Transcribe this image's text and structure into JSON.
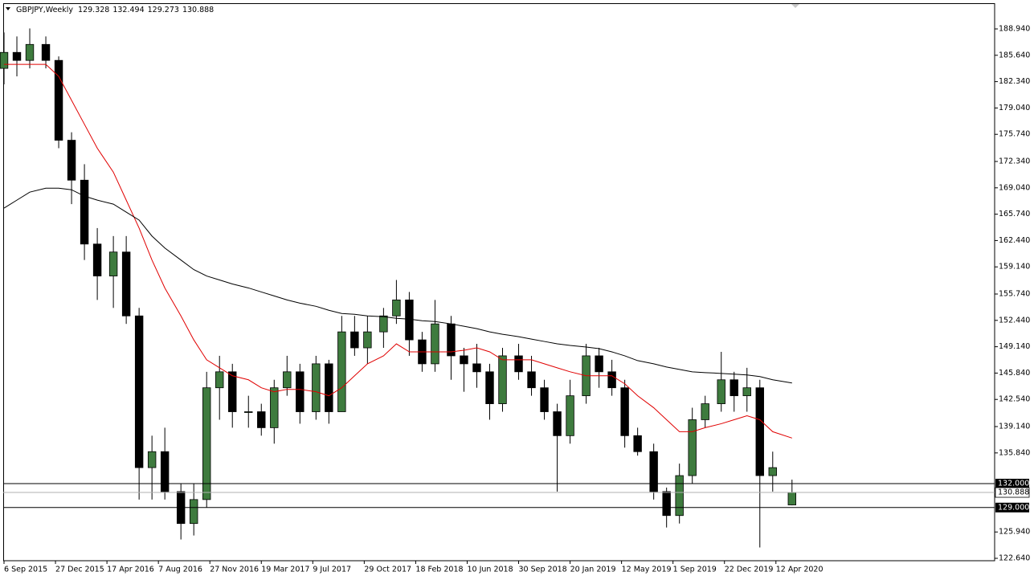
{
  "chart_data": {
    "type": "candlestick",
    "title": "GBPJPY,Weekly",
    "x": [
      0,
      4,
      8,
      13,
      17,
      21,
      25,
      29,
      34,
      38,
      42,
      46,
      50,
      55,
      59,
      63,
      67,
      71,
      76,
      80,
      84,
      88,
      92,
      97,
      101,
      105,
      109,
      113,
      118,
      122,
      126,
      130,
      134,
      139,
      143,
      147,
      151,
      155,
      160,
      164,
      168,
      172,
      176,
      181,
      185,
      189,
      193,
      197,
      202,
      206,
      210,
      214,
      218,
      223,
      227,
      231,
      235,
      239,
      245
    ],
    "open": [
      184,
      186,
      185,
      187,
      185,
      175,
      170,
      162,
      158,
      161,
      153,
      134,
      136,
      131,
      127,
      130,
      144,
      146,
      141,
      141,
      139,
      144,
      146,
      141,
      147,
      141,
      151,
      149,
      151,
      153,
      155,
      150,
      147,
      152,
      148,
      147,
      146,
      142,
      148,
      146,
      144,
      141,
      138,
      143,
      148,
      146,
      144,
      138,
      136,
      131,
      128,
      133,
      140,
      142,
      145,
      143,
      144,
      133,
      129.328
    ],
    "high": [
      188.5,
      188,
      189,
      188,
      185.5,
      176,
      172,
      164,
      163,
      163,
      154,
      138,
      139,
      132,
      132,
      146,
      148,
      147,
      143,
      142,
      145,
      148,
      147,
      148,
      147.5,
      153,
      153,
      153,
      154,
      157.5,
      156,
      151,
      155,
      153,
      149,
      149.5,
      147,
      149,
      149.5,
      148,
      145,
      142,
      145,
      149.5,
      149,
      147.5,
      145,
      139,
      137,
      131.5,
      134.5,
      141.5,
      143,
      148.5,
      146,
      146.5,
      145,
      136,
      132.494
    ],
    "low": [
      182,
      183,
      184,
      184,
      174,
      167,
      160,
      155,
      154,
      152,
      130,
      130,
      130,
      125,
      125.5,
      129,
      140,
      139,
      139,
      138,
      137,
      143,
      139.5,
      140,
      139.5,
      141,
      148,
      147,
      149,
      152,
      148,
      146,
      146,
      145,
      143.5,
      144,
      140,
      141,
      145,
      143,
      140,
      131,
      137,
      142,
      144,
      143,
      136.5,
      135.5,
      130,
      126.5,
      127,
      132,
      139,
      141,
      141,
      141,
      124,
      131,
      129.273
    ],
    "close": [
      186,
      185,
      187,
      185,
      175,
      170,
      162,
      158,
      161,
      153,
      134,
      136,
      131,
      127,
      130,
      144,
      146,
      141,
      141,
      139,
      144,
      146,
      141,
      147,
      141,
      151,
      149,
      151,
      153,
      155,
      150,
      147,
      152,
      148,
      147,
      146,
      142,
      148,
      146,
      144,
      141,
      138,
      143,
      148,
      146,
      144,
      138,
      136,
      131,
      128,
      133,
      140,
      142,
      145,
      143,
      144,
      133,
      134,
      130.888
    ],
    "up_color": "#3e7b3e",
    "down_color": "#000000",
    "series": [
      {
        "color": "#e00000",
        "values": [
          184.5,
          184.5,
          184.5,
          184.5,
          183,
          180,
          177,
          174,
          171,
          167.5,
          164,
          160,
          156.5,
          153,
          150,
          147.5,
          146.5,
          145.5,
          145,
          144,
          143.5,
          143.8,
          143.8,
          143.5,
          143,
          144,
          145.5,
          147,
          148,
          149.5,
          148.5,
          148.5,
          148.5,
          148.5,
          148.7,
          149,
          148.5,
          147.5,
          147.5,
          147.5,
          147,
          146.5,
          146,
          145.5,
          145.5,
          145.5,
          144.5,
          143,
          141.5,
          140,
          138.5,
          138.5,
          139,
          139.5,
          140,
          140.5,
          140,
          138.5,
          137.7
        ]
      },
      {
        "color": "#000000",
        "values": [
          166.5,
          167.5,
          168.5,
          169,
          169,
          168.8,
          168,
          167.5,
          167,
          166,
          165,
          163,
          161.5,
          160,
          158.8,
          158,
          157.5,
          157,
          156.5,
          156,
          155.5,
          155,
          154.6,
          154.2,
          153.7,
          153.3,
          153.2,
          153,
          152.9,
          152.7,
          152.6,
          152.4,
          152.3,
          152,
          151.7,
          151.4,
          151,
          150.7,
          150.4,
          150.1,
          149.8,
          149.5,
          149.3,
          149.1,
          148.9,
          148.5,
          148,
          147.4,
          147,
          146.6,
          146.3,
          146,
          145.9,
          145.8,
          145.7,
          145.6,
          145.4,
          145,
          144.6
        ]
      }
    ],
    "hlines": [
      {
        "value": 132,
        "label": "132.000"
      },
      {
        "value": 129,
        "label": "129.000"
      }
    ],
    "xlim": [
      -1,
      308
    ],
    "ylim": [
      122.34,
      192.06
    ],
    "xticks": [
      {
        "value": 0,
        "label": "6 Sep 2015"
      },
      {
        "value": 16,
        "label": "27 Dec 2015"
      },
      {
        "value": 32,
        "label": "17 Apr 2016"
      },
      {
        "value": 48,
        "label": "7 Aug 2016"
      },
      {
        "value": 64,
        "label": "27 Nov 2016"
      },
      {
        "value": 80,
        "label": "19 Mar 2017"
      },
      {
        "value": 96,
        "label": "9 Jul 2017"
      },
      {
        "value": 112,
        "label": "29 Oct 2017"
      },
      {
        "value": 128,
        "label": "18 Feb 2018"
      },
      {
        "value": 144,
        "label": "10 Jun 2018"
      },
      {
        "value": 160,
        "label": "30 Sep 2018"
      },
      {
        "value": 176,
        "label": "20 Jan 2019"
      },
      {
        "value": 192,
        "label": "12 May 2019"
      },
      {
        "value": 208,
        "label": "1 Sep 2019"
      },
      {
        "value": 224,
        "label": "22 Dec 2019"
      },
      {
        "value": 240,
        "label": "12 Apr 2020"
      }
    ],
    "yticks": [
      {
        "value": 188.94,
        "label": "188.940"
      },
      {
        "value": 185.64,
        "label": "185.640"
      },
      {
        "value": 182.34,
        "label": "182.340"
      },
      {
        "value": 179.04,
        "label": "179.040"
      },
      {
        "value": 175.74,
        "label": "175.740"
      },
      {
        "value": 172.34,
        "label": "172.340"
      },
      {
        "value": 169.04,
        "label": "169.040"
      },
      {
        "value": 165.74,
        "label": "165.740"
      },
      {
        "value": 162.44,
        "label": "162.440"
      },
      {
        "value": 159.14,
        "label": "159.140"
      },
      {
        "value": 155.74,
        "label": "155.740"
      },
      {
        "value": 152.44,
        "label": "152.440"
      },
      {
        "value": 149.14,
        "label": "149.140"
      },
      {
        "value": 145.84,
        "label": "145.840"
      },
      {
        "value": 142.54,
        "label": "142.540"
      },
      {
        "value": 139.14,
        "label": "139.140"
      },
      {
        "value": 135.84,
        "label": "135.840"
      },
      {
        "value": 125.94,
        "label": "125.940"
      },
      {
        "value": 122.64,
        "label": "122.640"
      }
    ]
  }
}
